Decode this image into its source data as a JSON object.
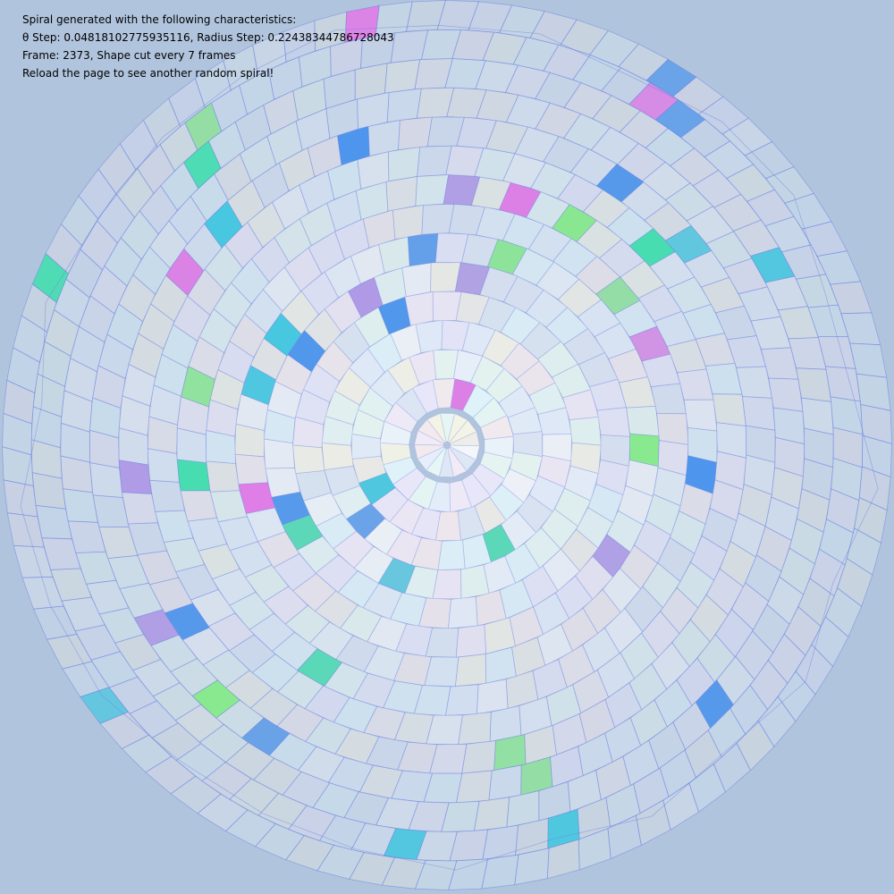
{
  "info": {
    "line1": "Spiral generated with the following characteristics:",
    "line2": "θ Step: 0.04818102775935116, Radius Step: 0.22438344786728043",
    "line3": "Frame: 2373, Shape cut every 7 frames",
    "line4": "Reload the page to see another random spiral!"
  },
  "colors": {
    "background": "#b1c4dd",
    "outline": "#6f86e0",
    "accents": [
      "#20e6a0",
      "#3a8cf0",
      "#e870e8",
      "#80f080",
      "#30c8e0",
      "#b090e8"
    ]
  }
}
